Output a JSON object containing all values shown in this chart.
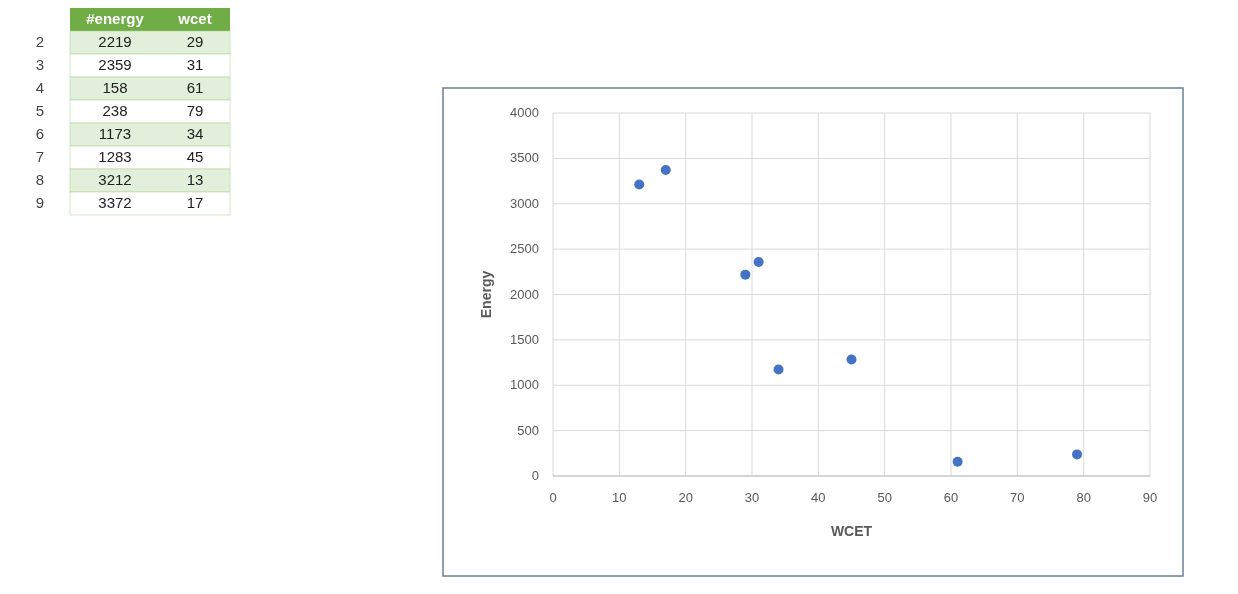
{
  "chart_data": [
    {
      "type": "heatmap",
      "categories": [
        "#energy",
        "wcet"
      ],
      "y_categories": [
        "2",
        "3",
        "4",
        "5",
        "6",
        "7",
        "8",
        "9"
      ],
      "data_labels": true,
      "cells": [
        [
          2219,
          29
        ],
        [
          2359,
          31
        ],
        [
          158,
          61
        ],
        [
          238,
          79
        ],
        [
          1173,
          34
        ],
        [
          1283,
          45
        ],
        [
          3212,
          13
        ],
        [
          3372,
          17
        ]
      ]
    },
    {
      "type": "scatter",
      "xlabel": "WCET",
      "ylabel": "Energy",
      "x": [
        29,
        31,
        61,
        79,
        34,
        45,
        13,
        17
      ],
      "values": [
        2219,
        2359,
        158,
        238,
        1173,
        1283,
        3212,
        3372
      ],
      "color": "#4472c4",
      "marker": "circle",
      "grid": true,
      "xlim": [
        0,
        90
      ],
      "xticks": [
        0,
        10,
        20,
        30,
        40,
        50,
        60,
        70,
        80,
        90
      ],
      "ylim": [
        0,
        4000
      ],
      "yticks": [
        0,
        500,
        1000,
        1500,
        2000,
        2500,
        3000,
        3500,
        4000
      ]
    }
  ]
}
